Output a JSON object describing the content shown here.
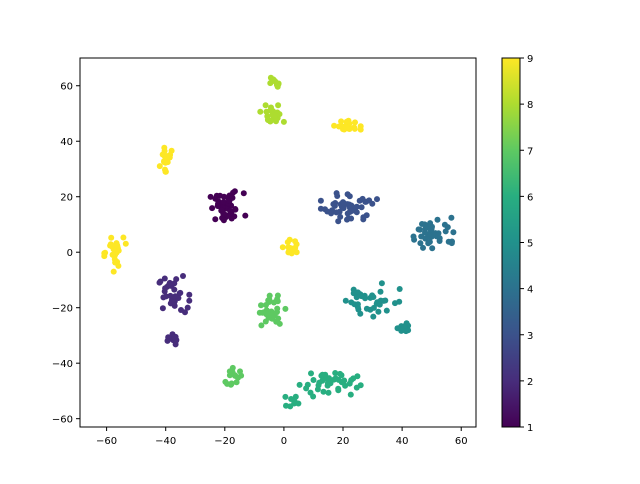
{
  "chart_data": {
    "type": "scatter",
    "title": "",
    "xlabel": "",
    "ylabel": "",
    "xlim": [
      -69,
      65
    ],
    "ylim": [
      -63,
      70
    ],
    "xticks": [
      -60,
      -40,
      -20,
      0,
      20,
      40,
      60
    ],
    "yticks": [
      -60,
      -40,
      -20,
      0,
      20,
      40,
      60
    ],
    "grid": false,
    "legend": "none",
    "colorbar": {
      "min": 1,
      "max": 9,
      "ticks": [
        1,
        2,
        3,
        4,
        5,
        6,
        7,
        8,
        9
      ],
      "colormap": "viridis"
    },
    "clusters": [
      {
        "value": 1,
        "center": [
          -19.5,
          16
        ],
        "spread": [
          6.5,
          6
        ],
        "count": 48
      },
      {
        "value": 2,
        "center": [
          -37.5,
          -15
        ],
        "spread": [
          5.5,
          7
        ],
        "count": 32
      },
      {
        "value": 2,
        "center": [
          -37.5,
          -31.5
        ],
        "spread": [
          2,
          2
        ],
        "count": 14
      },
      {
        "value": 3,
        "center": [
          22,
          16
        ],
        "spread": [
          9.5,
          6
        ],
        "count": 48
      },
      {
        "value": 4,
        "center": [
          51,
          7
        ],
        "spread": [
          9,
          6
        ],
        "count": 42
      },
      {
        "value": 5,
        "center": [
          30,
          -17
        ],
        "spread": [
          10,
          7
        ],
        "count": 36
      },
      {
        "value": 5,
        "center": [
          40,
          -27
        ],
        "spread": [
          2.5,
          2.5
        ],
        "count": 10
      },
      {
        "value": 6,
        "center": [
          15,
          -47
        ],
        "spread": [
          11,
          5
        ],
        "count": 42
      },
      {
        "value": 6,
        "center": [
          3,
          -54
        ],
        "spread": [
          2.5,
          2.5
        ],
        "count": 8
      },
      {
        "value": 7,
        "center": [
          -17.5,
          -45
        ],
        "spread": [
          3,
          4
        ],
        "count": 16
      },
      {
        "value": 7,
        "center": [
          -4.5,
          -21
        ],
        "spread": [
          5,
          6
        ],
        "count": 30
      },
      {
        "value": 8,
        "center": [
          -4,
          49
        ],
        "spread": [
          4,
          4
        ],
        "count": 24
      },
      {
        "value": 8,
        "center": [
          -3,
          61
        ],
        "spread": [
          2.5,
          2.5
        ],
        "count": 12
      },
      {
        "value": 9,
        "center": [
          21.5,
          45.5
        ],
        "spread": [
          4.5,
          2.5
        ],
        "count": 22
      },
      {
        "value": 9,
        "center": [
          -40,
          34
        ],
        "spread": [
          2,
          5
        ],
        "count": 20
      },
      {
        "value": 9,
        "center": [
          -58,
          0
        ],
        "spread": [
          4.5,
          7
        ],
        "count": 26
      },
      {
        "value": 9,
        "center": [
          2.5,
          1.5
        ],
        "spread": [
          3,
          3
        ],
        "count": 18
      }
    ]
  }
}
